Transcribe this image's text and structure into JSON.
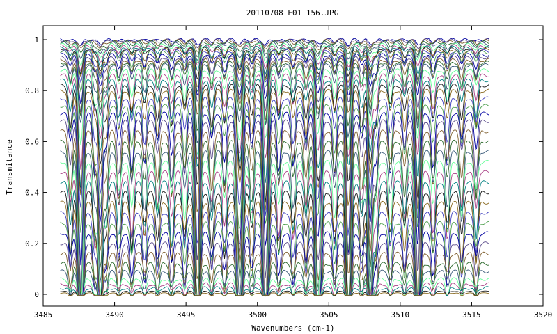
{
  "chart_data": {
    "type": "line",
    "title": "20110708_E01_156.JPG",
    "xlabel": "Wavenumbers (cm-1)",
    "ylabel": "Transmitance",
    "xlim": [
      3485,
      3520
    ],
    "ylim": [
      0,
      1
    ],
    "x_ticks": [
      "3485",
      "3490",
      "3495",
      "3500",
      "3505",
      "3510",
      "3515",
      "3520"
    ],
    "y_ticks": [
      "0",
      "0.2",
      "0.4",
      "0.6",
      "0.8",
      "1"
    ],
    "x_data_range": [
      3486.2,
      3516.2
    ],
    "grid": false,
    "legend": "none",
    "series_count": 46,
    "series_baselines": [
      1.0,
      0.998,
      0.995,
      0.99,
      0.985,
      0.98,
      0.975,
      0.97,
      0.965,
      0.96,
      0.955,
      0.95,
      0.94,
      0.93,
      0.92,
      0.91,
      0.9,
      0.88,
      0.86,
      0.84,
      0.82,
      0.8,
      0.77,
      0.74,
      0.71,
      0.68,
      0.64,
      0.6,
      0.56,
      0.52,
      0.48,
      0.44,
      0.4,
      0.36,
      0.32,
      0.28,
      0.24,
      0.2,
      0.16,
      0.12,
      0.09,
      0.06,
      0.04,
      0.025,
      0.012,
      0.005
    ],
    "absorption_lines": [
      3486.9,
      3487.7,
      3488.6,
      3489.4,
      3490.3,
      3491.2,
      3492.1,
      3493.0,
      3494.0,
      3494.9,
      3495.8,
      3496.8,
      3497.7,
      3498.6,
      3499.6,
      3500.5,
      3501.5,
      3502.5,
      3503.4,
      3504.4,
      3505.4,
      3506.3,
      3507.3,
      3508.3,
      3509.3,
      3510.3,
      3511.3,
      3512.3,
      3513.3,
      3514.3,
      3515.3
    ],
    "strong_lines": [
      3487.6,
      3489.0,
      3495.8,
      3498.8,
      3500.6,
      3504.2,
      3506.4,
      3507.9,
      3511.2
    ],
    "series_colors": [
      "#0000a0",
      "#5a4a8a",
      "#806030",
      "#2e6b2e",
      "#3a5a7a",
      "#66ff99",
      "#aa4488",
      "#008080",
      "#1a1a1a",
      "#8a6a20",
      "#4040c0",
      "#50a050"
    ]
  }
}
